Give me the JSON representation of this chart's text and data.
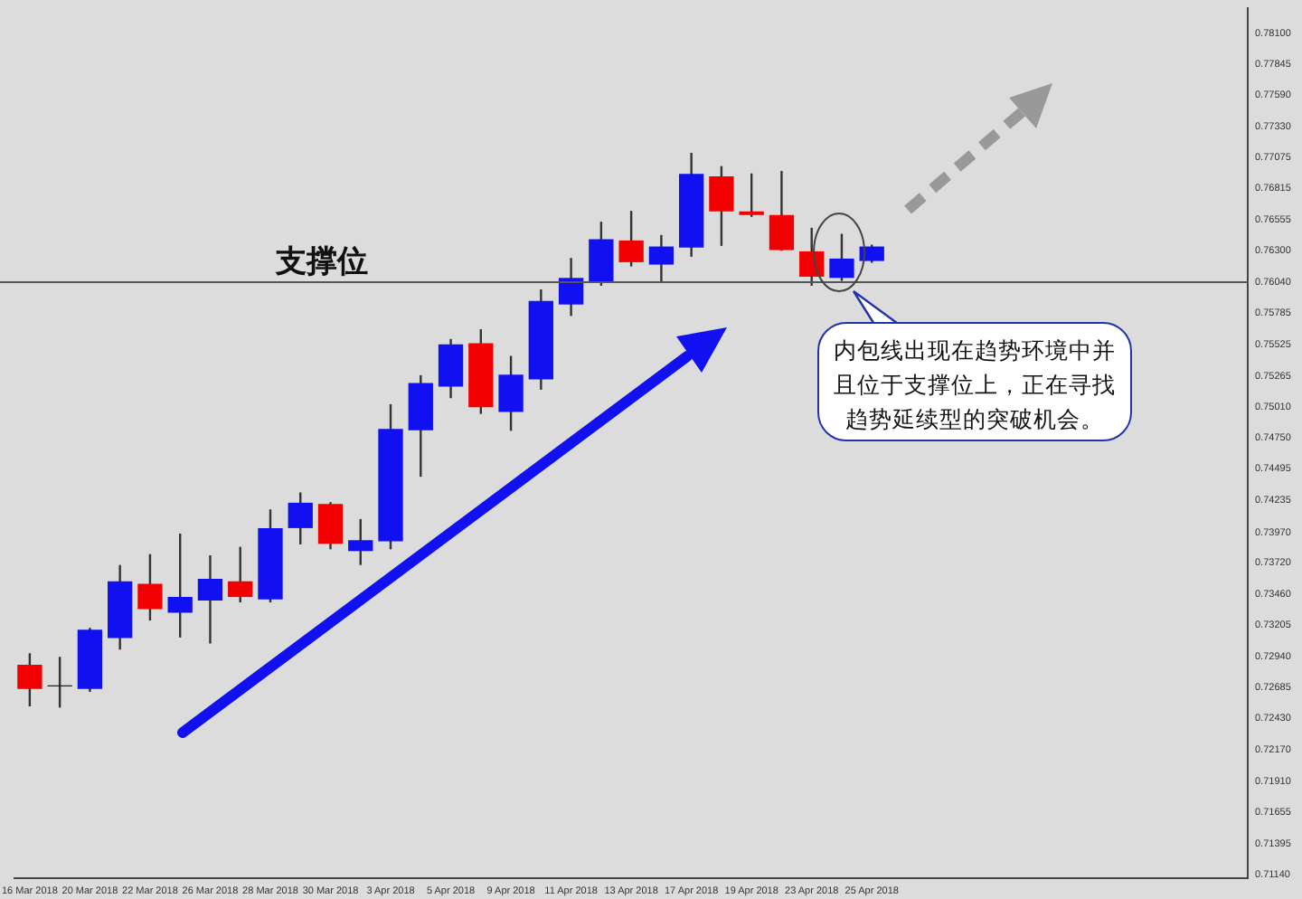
{
  "chart_data": {
    "type": "candlestick",
    "categories": [
      "16 Mar 2018",
      null,
      "20 Mar 2018",
      null,
      "22 Mar 2018",
      null,
      "26 Mar 2018",
      null,
      "28 Mar 2018",
      null,
      "30 Mar 2018",
      null,
      "3 Apr 2018",
      null,
      "5 Apr 2018",
      null,
      "9 Apr 2018",
      null,
      "11 Apr 2018",
      null,
      "13 Apr 2018",
      null,
      "17 Apr 2018",
      null,
      "19 Apr 2018",
      null,
      "23 Apr 2018",
      null,
      "25 Apr 2018",
      null,
      null,
      null,
      null,
      null,
      null,
      null,
      null,
      null,
      null,
      null,
      null
    ],
    "ohlc": [
      [
        0.7287,
        0.7297,
        0.7253,
        0.7268
      ],
      [
        0.727,
        0.7294,
        0.7252,
        0.727
      ],
      [
        0.7268,
        0.7318,
        0.7265,
        0.7316
      ],
      [
        0.731,
        0.737,
        0.73,
        0.7356
      ],
      [
        0.7354,
        0.7379,
        0.7324,
        0.7334
      ],
      [
        0.7331,
        0.7396,
        0.731,
        0.7343
      ],
      [
        0.7341,
        0.7378,
        0.7305,
        0.7358
      ],
      [
        0.7356,
        0.7385,
        0.7339,
        0.7344
      ],
      [
        0.7342,
        0.7416,
        0.7339,
        0.74
      ],
      [
        0.7401,
        0.743,
        0.7387,
        0.7421
      ],
      [
        0.742,
        0.7422,
        0.7383,
        0.7388
      ],
      [
        0.7382,
        0.7408,
        0.737,
        0.739
      ],
      [
        0.739,
        0.7503,
        0.7383,
        0.7482
      ],
      [
        0.7482,
        0.7527,
        0.7443,
        0.752
      ],
      [
        0.7518,
        0.7557,
        0.7508,
        0.7552
      ],
      [
        0.7553,
        0.7565,
        0.7495,
        0.7501
      ],
      [
        0.7497,
        0.7543,
        0.7481,
        0.7527
      ],
      [
        0.7524,
        0.7598,
        0.7515,
        0.7588
      ],
      [
        0.7586,
        0.7624,
        0.7576,
        0.7607
      ],
      [
        0.7605,
        0.7654,
        0.7601,
        0.7639
      ],
      [
        0.7638,
        0.7663,
        0.7617,
        0.7621
      ],
      [
        0.7619,
        0.7643,
        0.7604,
        0.7633
      ],
      [
        0.7633,
        0.7711,
        0.7625,
        0.7693
      ],
      [
        0.7691,
        0.77,
        0.7634,
        0.7663
      ],
      [
        0.7662,
        0.7694,
        0.7658,
        0.766
      ],
      [
        0.7659,
        0.7696,
        0.763,
        0.7631
      ],
      [
        0.7629,
        0.7649,
        0.7601,
        0.7609
      ],
      [
        0.7608,
        0.7644,
        0.7605,
        0.7623
      ],
      [
        0.7622,
        0.7635,
        0.762,
        0.7633
      ],
      null,
      null,
      null,
      null,
      null,
      null,
      null,
      null,
      null,
      null,
      null,
      null
    ],
    "colors": [
      "#f00000",
      "#202020",
      "#1010f0",
      "#1010f0",
      "#f00000",
      "#1010f0",
      "#1010f0",
      "#f00000",
      "#1010f0",
      "#1010f0",
      "#f00000",
      "#1010f0",
      "#1010f0",
      "#1010f0",
      "#1010f0",
      "#f00000",
      "#1010f0",
      "#1010f0",
      "#1010f0",
      "#1010f0",
      "#f00000",
      "#1010f0",
      "#1010f0",
      "#f00000",
      "#f00000",
      "#f00000",
      "#f00000",
      "#1010f0",
      "#1010f0",
      null,
      null,
      null,
      null,
      null,
      null,
      null,
      null,
      null,
      null,
      null,
      null
    ],
    "ylim": [
      0.7111,
      0.7831
    ],
    "yticks": [
      {
        "value": 0.7114,
        "label": "0.71140"
      },
      {
        "value": 0.71395,
        "label": "0.71395"
      },
      {
        "value": 0.71655,
        "label": "0.71655"
      },
      {
        "value": 0.7191,
        "label": "0.71910"
      },
      {
        "value": 0.7217,
        "label": "0.72170"
      },
      {
        "value": 0.7243,
        "label": "0.72430"
      },
      {
        "value": 0.72685,
        "label": "0.72685"
      },
      {
        "value": 0.7294,
        "label": "0.72940"
      },
      {
        "value": 0.73205,
        "label": "0.73205"
      },
      {
        "value": 0.7346,
        "label": "0.73460"
      },
      {
        "value": 0.7372,
        "label": "0.73720"
      },
      {
        "value": 0.7397,
        "label": "0.73970"
      },
      {
        "value": 0.74235,
        "label": "0.74235"
      },
      {
        "value": 0.74495,
        "label": "0.74495"
      },
      {
        "value": 0.7475,
        "label": "0.74750"
      },
      {
        "value": 0.7501,
        "label": "0.75010"
      },
      {
        "value": 0.75265,
        "label": "0.75265"
      },
      {
        "value": 0.75525,
        "label": "0.75525"
      },
      {
        "value": 0.75785,
        "label": "0.75785"
      },
      {
        "value": 0.7604,
        "label": "0.76040"
      },
      {
        "value": 0.763,
        "label": "0.76300"
      },
      {
        "value": 0.76555,
        "label": "0.76555"
      },
      {
        "value": 0.76815,
        "label": "0.76815"
      },
      {
        "value": 0.77075,
        "label": "0.77075"
      },
      {
        "value": 0.7733,
        "label": "0.77330"
      },
      {
        "value": 0.7759,
        "label": "0.77590"
      },
      {
        "value": 0.77845,
        "label": "0.77845"
      },
      {
        "value": 0.781,
        "label": "0.78100"
      }
    ],
    "ref_lines": [
      {
        "axis": "y",
        "value": 0.7604,
        "label": "支撑位",
        "color": "#555555"
      }
    ],
    "annotations": [
      "内包线出现在趋势环境中并且位于支撑位上，正在寻找趋势延续型的突破机会。"
    ]
  }
}
